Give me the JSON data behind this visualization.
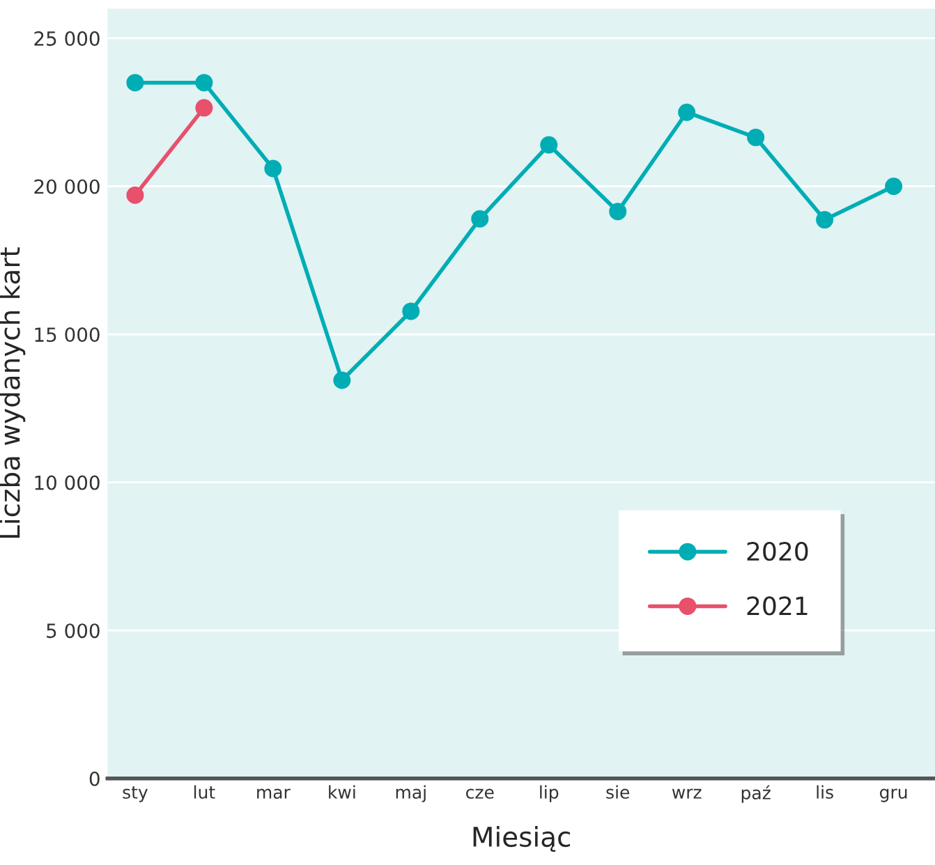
{
  "chart_data": {
    "type": "line",
    "xlabel": "Miesiąc",
    "ylabel": "Liczba wydanych kart",
    "categories": [
      "sty",
      "lut",
      "mar",
      "kwi",
      "maj",
      "cze",
      "lip",
      "sie",
      "wrz",
      "paź",
      "lis",
      "gru"
    ],
    "series": [
      {
        "name": "2020",
        "color": "#00adb5",
        "values": [
          23500,
          23500,
          20600,
          13450,
          15780,
          18900,
          21400,
          19150,
          22500,
          21650,
          18870,
          20000
        ]
      },
      {
        "name": "2021",
        "color": "#e8506b",
        "values": [
          19700,
          22650,
          null,
          null,
          null,
          null,
          null,
          null,
          null,
          null,
          null,
          null
        ]
      }
    ],
    "ylim": [
      0,
      26000
    ],
    "yticks": [
      0,
      {
        "value": 5000,
        "label": "5 000"
      },
      {
        "value": 10000,
        "label": "10 000"
      },
      {
        "value": 15000,
        "label": "15 000"
      },
      {
        "value": 20000,
        "label": "20 000"
      },
      {
        "value": 25000,
        "label": "25 000"
      }
    ],
    "grid": "y",
    "legend": "bottom right",
    "marker": "circle",
    "line_style": "solid"
  }
}
